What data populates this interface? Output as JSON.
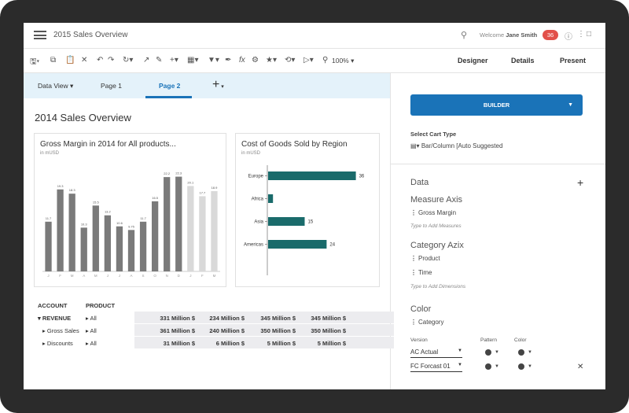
{
  "app": {
    "title": "2015 Sales Overview",
    "welcome_prefix": "Welcome",
    "user_name": "Jane Smith",
    "notification_count": "36"
  },
  "toolbar": {
    "zoom": "100%",
    "modes": [
      "Designer",
      "Details",
      "Present"
    ]
  },
  "tabs": {
    "data_view": "Data View",
    "items": [
      "Page 1",
      "Page 2"
    ],
    "active_index": 1
  },
  "page": {
    "heading": "2014 Sales Overview"
  },
  "charts": {
    "gross_margin": {
      "title": "Gross Margin in 2014 for All products...",
      "subtitle": "in mUSD"
    },
    "cogs": {
      "title": "Cost of Goods Sold by Region",
      "subtitle": "in mUSD"
    }
  },
  "chart_data": [
    {
      "type": "bar",
      "title": "Gross Margin in 2014 for All products...",
      "subtitle": "in mUSD",
      "categories": [
        "J",
        "F",
        "M",
        "A",
        "M",
        "J",
        "J",
        "A",
        "S",
        "O",
        "N",
        "D",
        "J",
        "F",
        "M"
      ],
      "values": [
        11.7,
        19.3,
        18.3,
        10.3,
        15.5,
        13.2,
        10.6,
        9.75,
        11.7,
        16.5,
        22.2,
        22.3,
        20.1,
        17.7,
        18.9
      ],
      "value_labels": [
        "11.7",
        "19.3",
        "18.3",
        "10.3",
        "15.5",
        "13.2",
        "10.6",
        "9.75",
        "11.7",
        "16.5",
        "22.2",
        "22.3",
        "20.1",
        "17.7",
        "18.9"
      ],
      "forecast_from_index": 12,
      "colors": {
        "actual": "#7a7a7a",
        "forecast": "#d9d9d9"
      },
      "ylim": [
        0,
        25
      ]
    },
    {
      "type": "bar",
      "orientation": "horizontal",
      "title": "Cost of Goods Sold by Region",
      "subtitle": "in mUSD",
      "categories": [
        "Europe",
        "Africa",
        "Asia",
        "Americas"
      ],
      "values": [
        36,
        2,
        15,
        24
      ],
      "value_labels": [
        "36",
        "",
        "15",
        "24"
      ],
      "colors": {
        "bar": "#1a6b6b"
      },
      "xlim": [
        0,
        40
      ]
    }
  ],
  "table": {
    "headers": [
      "ACCOUNT",
      "PRODUCT"
    ],
    "rows": [
      {
        "account": "REVENUE",
        "product": "All",
        "values": [
          "331 Million $",
          "234 Million $",
          "345 Million $",
          "345 Million $"
        ]
      },
      {
        "account": "Gross Sales",
        "product": "All",
        "values": [
          "361 Million $",
          "240 Million $",
          "350 Million $",
          "350 Million $"
        ]
      },
      {
        "account": "Discounts",
        "product": "All",
        "values": [
          "31 Million $",
          "6 Million $",
          "5 Million $",
          "5 Million $"
        ]
      }
    ]
  },
  "right_panel": {
    "builder_label": "BUILDER",
    "chart_type_label": "Select Cart Type",
    "chart_type_value": "Bar/Column [Auto Suggested",
    "data_heading": "Data",
    "measure_axis": {
      "heading": "Measure Axis",
      "items": [
        "Gross Margin"
      ],
      "hint": "Type to Add Measures"
    },
    "category_axis": {
      "heading": "Category Azix",
      "items": [
        "Product",
        "Time"
      ],
      "hint": "Type to Add Dimensions"
    },
    "color": {
      "heading": "Color",
      "items": [
        "Category"
      ]
    },
    "version_columns": [
      "Version",
      "Pattern",
      "Color"
    ],
    "versions": [
      "AC Actual",
      "FC Forcast 01"
    ]
  },
  "colors": {
    "accent": "#1a73b8",
    "tab_bar_bg": "#e4f2fa",
    "badge": "#e2504a",
    "teal_bar": "#1a6b6b",
    "gray_bar": "#7a7a7a",
    "light_bar": "#d9d9d9"
  }
}
